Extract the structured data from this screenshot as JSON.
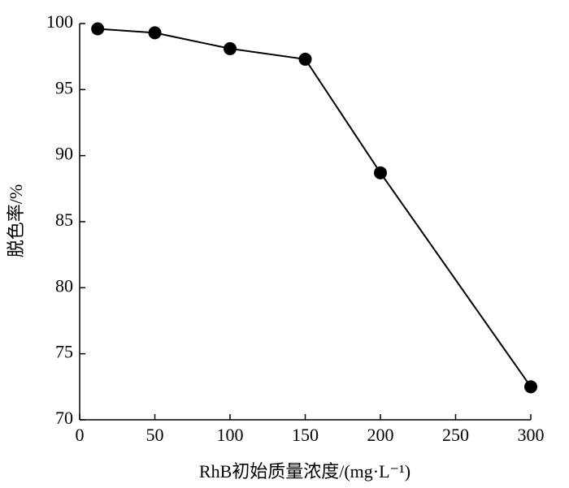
{
  "chart_data": {
    "type": "line",
    "x_label": "RhB初始质量浓度/(mg·L⁻¹)",
    "y_label": "脱色率/%",
    "series": [
      {
        "color": "#000000",
        "x": [
          12,
          50,
          100,
          150,
          200,
          300
        ],
        "values": [
          99.6,
          99.3,
          98.1,
          97.3,
          88.7,
          72.5
        ]
      }
    ],
    "xlim": [
      0,
      300
    ],
    "xticks": [
      0,
      50,
      100,
      150,
      200,
      250,
      300
    ],
    "ylim": [
      70,
      100
    ],
    "yticks": [
      70,
      75,
      80,
      85,
      90,
      95,
      100
    ],
    "grid": false
  }
}
